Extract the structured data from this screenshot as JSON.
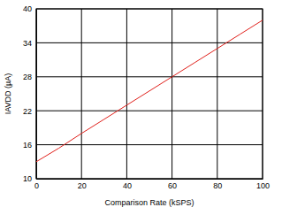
{
  "chart_data": {
    "type": "line",
    "x_label": "Comparison Rate (kSPS)",
    "y_label": "IAVDD (µA)",
    "x": [
      0,
      10,
      20,
      30,
      40,
      50,
      60,
      70,
      80,
      90,
      100
    ],
    "values": [
      13,
      15.4,
      18,
      20.5,
      23,
      25.5,
      28,
      30.5,
      33,
      35.5,
      38
    ],
    "color": "#e0201b",
    "xlim": [
      0,
      100
    ],
    "xticks": [
      0,
      20,
      40,
      60,
      80,
      100
    ],
    "ylim": [
      10,
      40
    ],
    "yticks": [
      10,
      16,
      22,
      28,
      34,
      40
    ],
    "grid": true
  }
}
